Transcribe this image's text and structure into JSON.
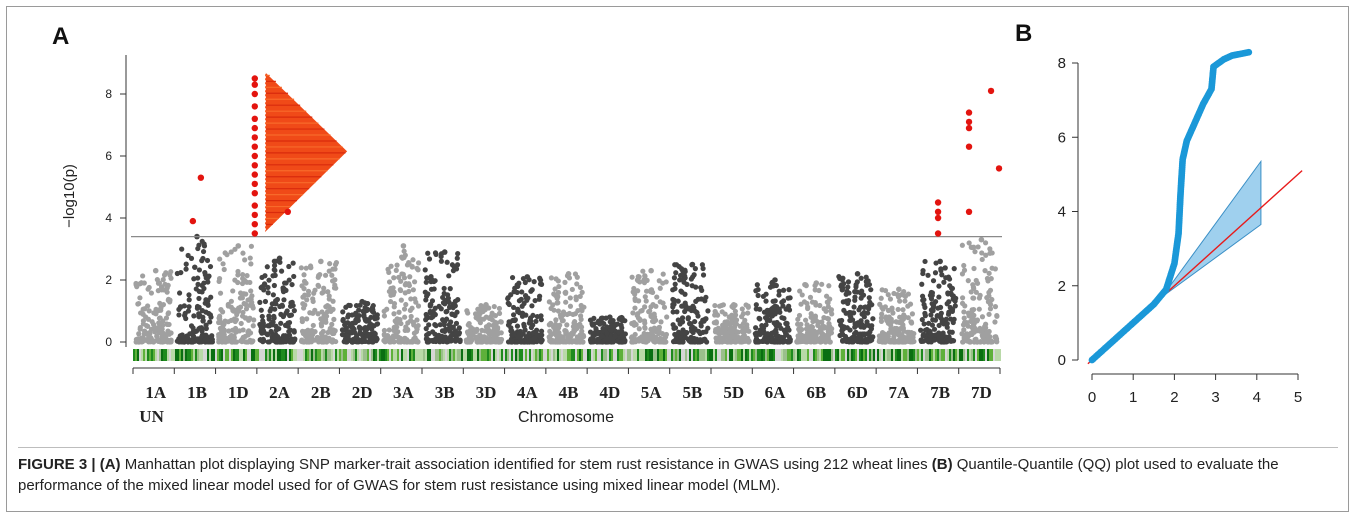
{
  "figure": {
    "panel_a_letter": "A",
    "panel_b_letter": "B",
    "caption": {
      "label": "FIGURE 3 |",
      "part_a_tag": "(A)",
      "part_a_text": " Manhattan plot displaying SNP marker-trait association identified for stem rust resistance in GWAS using 212 wheat lines ",
      "part_b_tag": "(B)",
      "part_b_text": " Quantile-Quantile (QQ) plot used to evaluate the performance of the mixed linear model used for of GWAS for stem rust resistance using mixed linear model (MLM)."
    }
  },
  "chart_data": [
    {
      "type": "scatter",
      "panel": "A",
      "title": "",
      "xlabel": "Chromosome",
      "ylabel": "−log10(p)",
      "ylim": [
        0,
        9
      ],
      "yticks": [
        0,
        2,
        4,
        6,
        8
      ],
      "threshold": 3.4,
      "categories": [
        "1A",
        "1B",
        "1D",
        "2A",
        "2B",
        "2D",
        "3A",
        "3B",
        "3D",
        "4A",
        "4B",
        "4D",
        "5A",
        "5B",
        "5D",
        "6A",
        "6B",
        "6D",
        "7A",
        "7B",
        "7D"
      ],
      "extra_label": "UN",
      "max_background_by_chromosome": [
        2.3,
        3.4,
        3.1,
        2.7,
        2.6,
        1.3,
        3.1,
        2.9,
        1.2,
        2.1,
        2.2,
        0.8,
        2.3,
        2.5,
        1.2,
        2.0,
        1.9,
        2.2,
        1.7,
        2.6,
        3.3
      ],
      "significant_points": [
        {
          "chromosome": "1B",
          "values": [
            3.9,
            5.3
          ]
        },
        {
          "chromosome": "2A",
          "values": [
            3.5,
            3.8,
            4.1,
            4.4,
            4.8,
            5.1,
            5.4,
            5.7,
            6.0,
            6.3,
            6.6,
            6.9,
            7.2,
            7.6,
            8.0,
            8.3,
            8.5
          ]
        },
        {
          "chromosome": "2A",
          "values": [
            4.2
          ]
        },
        {
          "chromosome": "7B",
          "values": [
            3.5,
            4.0,
            4.2,
            4.5
          ]
        },
        {
          "chromosome": "7D",
          "values": [
            4.2,
            6.3,
            6.9,
            7.1,
            7.4,
            8.1,
            5.6
          ]
        }
      ],
      "colors": {
        "significant": "#e3140f",
        "chrom_dark": "#444444",
        "chrom_light": "#a0a0a0",
        "threshold": "#8a8a8a",
        "ld_heatmap": "#f04a18"
      }
    },
    {
      "type": "scatter",
      "panel": "B",
      "title": "",
      "xlabel": "",
      "ylabel": "",
      "xlim": [
        0,
        5
      ],
      "ylim": [
        0,
        8.3
      ],
      "xticks": [
        0,
        1,
        2,
        3,
        4,
        5
      ],
      "yticks": [
        0,
        2,
        4,
        6,
        8
      ],
      "observed_curve": [
        [
          0,
          0
        ],
        [
          0.5,
          0.5
        ],
        [
          1.0,
          1.0
        ],
        [
          1.5,
          1.5
        ],
        [
          1.8,
          1.9
        ],
        [
          2.0,
          2.6
        ],
        [
          2.1,
          3.4
        ],
        [
          2.15,
          4.5
        ],
        [
          2.2,
          5.4
        ],
        [
          2.3,
          5.9
        ],
        [
          2.5,
          6.4
        ],
        [
          2.7,
          6.9
        ],
        [
          2.9,
          7.3
        ],
        [
          2.95,
          7.9
        ],
        [
          3.2,
          8.1
        ],
        [
          3.4,
          8.2
        ],
        [
          3.85,
          8.3
        ]
      ],
      "expected_line": [
        [
          -0.1,
          -0.1
        ],
        [
          5.1,
          5.1
        ]
      ],
      "confidence_band": {
        "x_start": 1.7,
        "x_end": 4.1,
        "upper_end": 5.35,
        "lower_end": 3.65
      },
      "colors": {
        "points": "#1b98d8",
        "line": "#e81b1b",
        "band": "#9fd0ee"
      }
    }
  ]
}
